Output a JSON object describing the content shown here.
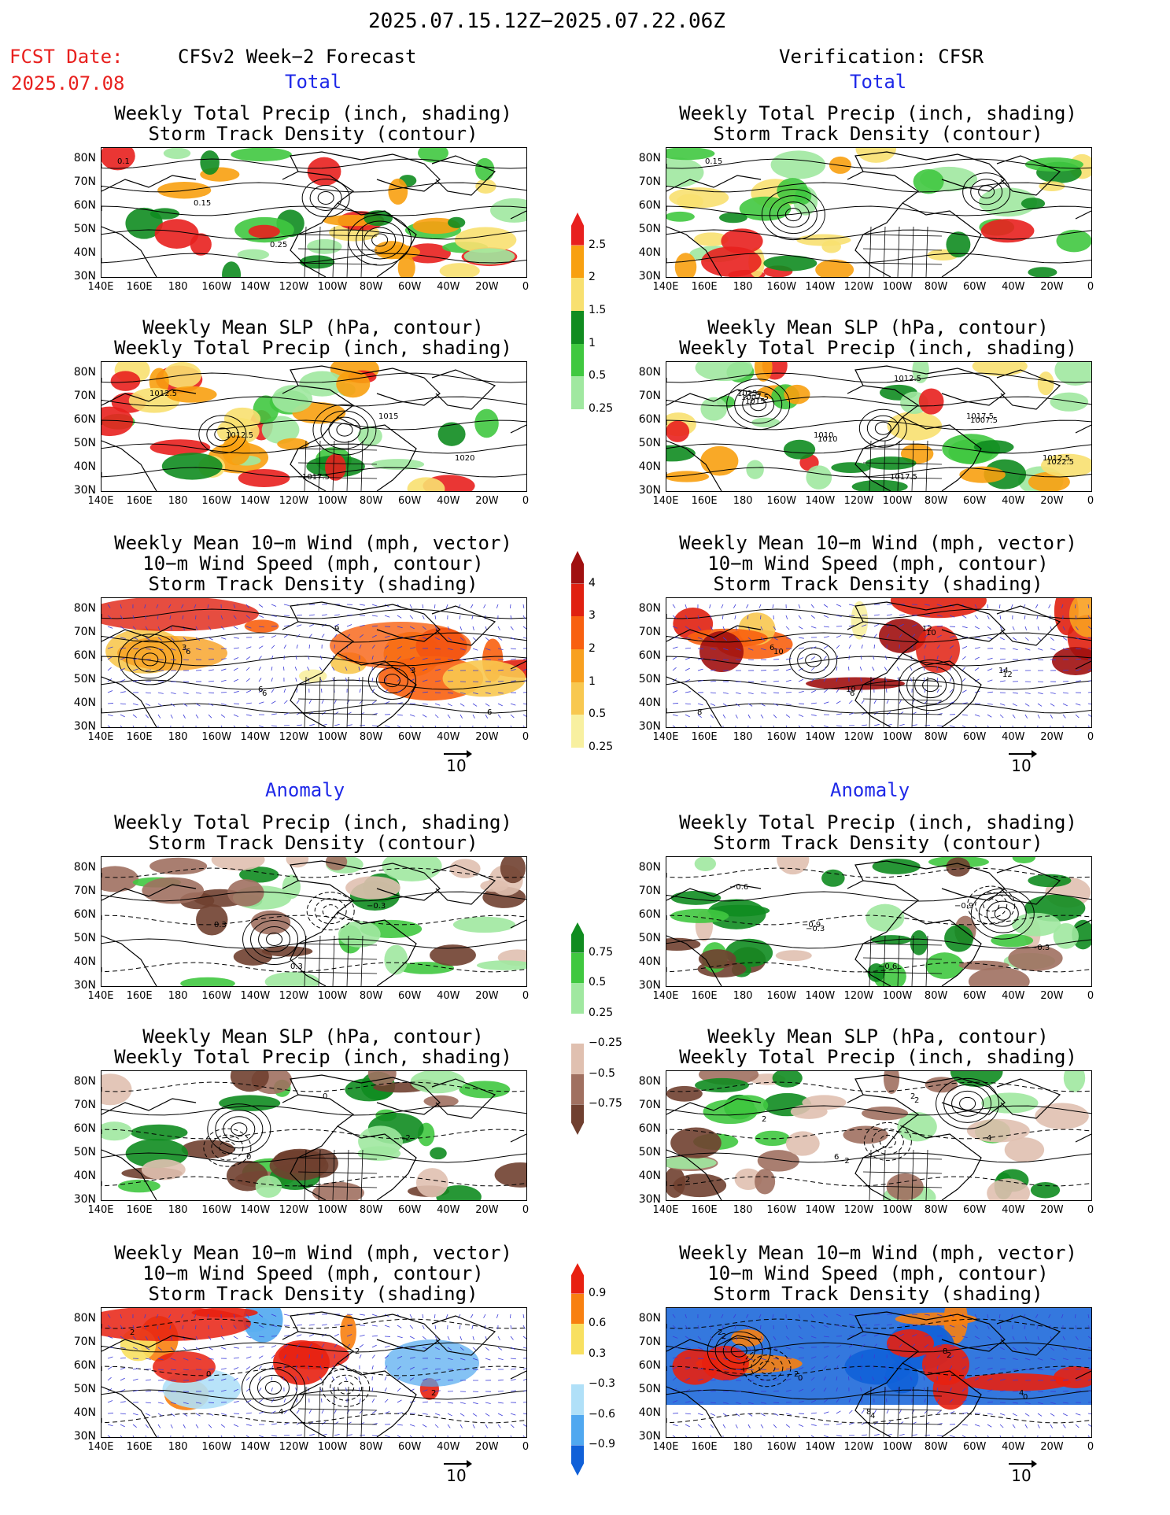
{
  "header": {
    "date_range": "2025.07.15.12Z−2025.07.22.06Z",
    "fcst_label": "FCST Date:",
    "fcst_date": "2025.07.08",
    "left_title": "CFSv2 Week−2 Forecast",
    "right_title": "Verification: CFSR",
    "total_label": "Total",
    "anomaly_label": "Anomaly"
  },
  "panel_titles": {
    "precip_storm": [
      "Weekly Total Precip (inch, shading)",
      "Storm Track Density (contour)"
    ],
    "slp_precip": [
      "Weekly Mean SLP (hPa, contour)",
      "Weekly Total Precip (inch, shading)"
    ],
    "wind": [
      "Weekly Mean 10−m Wind (mph, vector)",
      "10−m Wind Speed (mph, contour)",
      "Storm Track Density (shading)"
    ]
  },
  "axes": {
    "lat_labels": [
      "80N",
      "70N",
      "60N",
      "50N",
      "40N",
      "30N"
    ],
    "lon_labels": [
      "140E",
      "160E",
      "180",
      "160W",
      "140W",
      "120W",
      "100W",
      "80W",
      "60W",
      "40W",
      "20W",
      "0"
    ]
  },
  "vector_ref": "10",
  "colorbars": {
    "precip_total": {
      "labels": [
        "2.5",
        "2",
        "1.5",
        "1",
        "0.5",
        "0.25"
      ],
      "colors": [
        "#e8201e",
        "#f8a010",
        "#f8e070",
        "#108c20",
        "#40c840",
        "#a0e8a0"
      ]
    },
    "storm_total": {
      "labels": [
        "4",
        "3",
        "2",
        "1",
        "0.5",
        "0.25"
      ],
      "colors": [
        "#a01010",
        "#e02010",
        "#f86010",
        "#f8a020",
        "#f8c850",
        "#f8f0a0"
      ]
    },
    "precip_anom": {
      "labels": [
        "0.75",
        "0.5",
        "0.25",
        "−0.25",
        "−0.5",
        "−0.75"
      ],
      "colors": [
        "#108c20",
        "#40c840",
        "#a0e8a0",
        "#ffffff",
        "#e0c0b0",
        "#a07060",
        "#704030"
      ]
    },
    "storm_anom": {
      "labels": [
        "0.9",
        "0.6",
        "0.3",
        "−0.3",
        "−0.6",
        "−0.9"
      ],
      "colors": [
        "#e82010",
        "#f88010",
        "#f8e060",
        "#ffffff",
        "#b0e0f8",
        "#50a8f0",
        "#1060d8"
      ]
    }
  },
  "contour_labels": {
    "f_total_precip": [
      "0.1",
      "0.15",
      "0.25"
    ],
    "v_total_precip": [
      "0.15"
    ],
    "f_total_slp": [
      "1012.5",
      "1012.5",
      "1017.5",
      "1015",
      "1020"
    ],
    "v_total_slp": [
      "1015",
      "1010",
      "1017.5",
      "1017.5",
      "1012.5",
      "1007.5",
      "1010",
      "1012.5",
      "1007.5",
      "1022.5",
      "1015"
    ],
    "f_total_wind": [
      "3",
      "6",
      "9",
      "3",
      "6",
      "6",
      "6"
    ],
    "v_total_wind": [
      "6",
      "10",
      "12",
      "14",
      "8",
      "10",
      "6",
      "10",
      "12"
    ],
    "f_anom_precip": [
      "0.3",
      "0.3",
      "−0.3"
    ],
    "v_anom_precip": [
      "−0.9",
      "−0.6",
      "−0.9",
      "−0.3",
      "−0.6",
      "−0.3"
    ],
    "f_anom_slp": [
      "0",
      "0",
      "−2"
    ],
    "v_anom_slp": [
      "6",
      "2",
      "4",
      "2",
      "2",
      "−2",
      "2"
    ],
    "f_anom_wind": [
      "4",
      "2",
      "2",
      "2",
      "0"
    ],
    "v_anom_wind": [
      "8",
      "8",
      "4",
      "2",
      "2",
      "4",
      "2",
      "0",
      "2",
      "0"
    ]
  }
}
